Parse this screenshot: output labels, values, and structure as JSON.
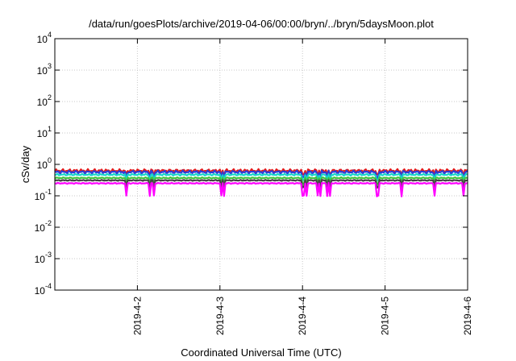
{
  "chart_data": {
    "type": "line",
    "title": "/data/run/goesPlots/archive/2019-04-06/00:00/bryn/../bryn/5daysMoon.plot",
    "xlabel": "Coordinated Universal Time (UTC)",
    "ylabel": "cSv/day",
    "yscale": "log",
    "ylim": [
      0.0001,
      10000
    ],
    "xlim": [
      "2019-04-01",
      "2019-04-06"
    ],
    "grid": true,
    "y_ticks": [
      {
        "base": "10",
        "exp": "-4",
        "value": 0.0001
      },
      {
        "base": "10",
        "exp": "-3",
        "value": 0.001
      },
      {
        "base": "10",
        "exp": "-2",
        "value": 0.01
      },
      {
        "base": "10",
        "exp": "-1",
        "value": 0.1
      },
      {
        "base": "10",
        "exp": "0",
        "value": 1
      },
      {
        "base": "10",
        "exp": "1",
        "value": 10
      },
      {
        "base": "10",
        "exp": "2",
        "value": 100
      },
      {
        "base": "10",
        "exp": "3",
        "value": 1000
      },
      {
        "base": "10",
        "exp": "4",
        "value": 10000
      }
    ],
    "x_ticks": [
      {
        "label": "2019-4-2",
        "value": "2019-04-02"
      },
      {
        "label": "2019-4-3",
        "value": "2019-04-03"
      },
      {
        "label": "2019-4-4",
        "value": "2019-04-04"
      },
      {
        "label": "2019-4-5",
        "value": "2019-04-05"
      },
      {
        "label": "2019-4-6",
        "value": "2019-04-06"
      }
    ],
    "series": [
      {
        "color": "#e31a1c",
        "level": 0.63,
        "jitter": 0.13,
        "dip": 0.25
      },
      {
        "color": "#2b3fd8",
        "level": 0.57,
        "jitter": 0.12,
        "dip": 0.35
      },
      {
        "color": "#17d6c8",
        "level": 0.47,
        "jitter": 0.07,
        "dip": 0.35
      },
      {
        "color": "#3ec43e",
        "level": 0.37,
        "jitter": 0.05,
        "dip": 0.35
      },
      {
        "color": "#444444",
        "level": 0.31,
        "jitter": 0.04,
        "dip": 0.4
      },
      {
        "color": "#ff00ff",
        "level": 0.25,
        "jitter": 0.04,
        "dip": 0.6
      }
    ],
    "dip_days": [
      0.87,
      1.15,
      1.2,
      2.02,
      2.05,
      3.01,
      3.05,
      3.18,
      3.22,
      3.3,
      3.33,
      3.91,
      4.2,
      4.6,
      4.95
    ]
  }
}
